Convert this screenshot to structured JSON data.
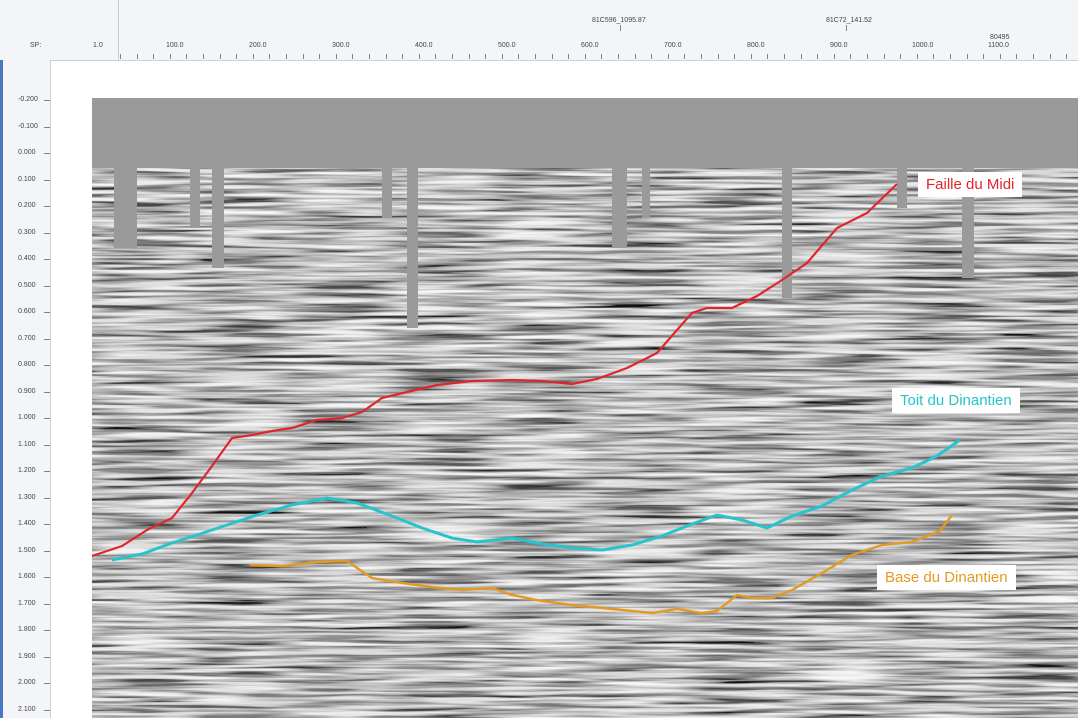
{
  "top_ruler": {
    "sp_label": "SP:",
    "ticks": [
      "1.0",
      "100.0",
      "200.0",
      "300.0",
      "400.0",
      "500.0",
      "600.0",
      "700.0",
      "800.0",
      "900.0",
      "1000.0",
      "1100.0"
    ],
    "markers": [
      "81C596_1095.87",
      "81C72_141.52",
      "80495"
    ]
  },
  "left_ruler": {
    "ticks": [
      "-0.200",
      "-0.100",
      "0.000",
      "0.100",
      "0.200",
      "0.300",
      "0.400",
      "0.500",
      "0.600",
      "0.700",
      "0.800",
      "0.900",
      "1.000",
      "1.100",
      "1.200",
      "1.300",
      "1.400",
      "1.500",
      "1.600",
      "1.700",
      "1.800",
      "1.900",
      "2.000",
      "2.100"
    ]
  },
  "horizons": [
    {
      "label": "Faille du Midi",
      "color": "#e0262b"
    },
    {
      "label": "Toit du Dinantien",
      "color": "#25c4cf"
    },
    {
      "label": "Base du Dinantien",
      "color": "#e39a1f"
    }
  ],
  "colors": {
    "background_gray": "#9a9a9a",
    "ruler_bg": "#f3f5f8"
  }
}
